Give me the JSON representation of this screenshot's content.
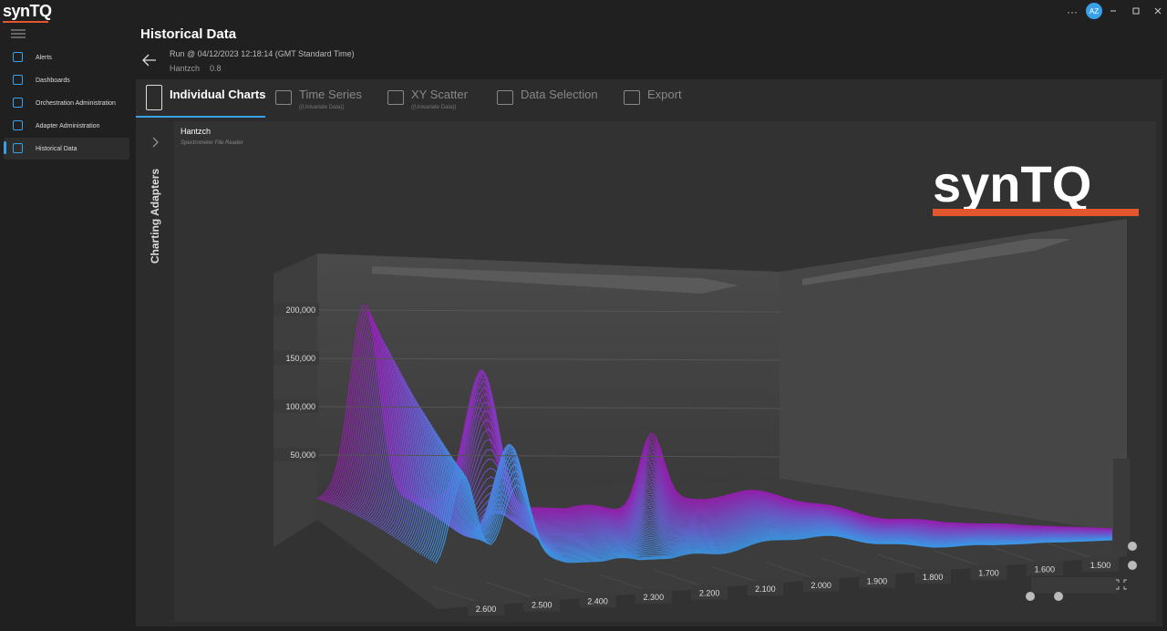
{
  "app": {
    "title": "synTQ"
  },
  "user": {
    "initials": "AZ"
  },
  "nav": [
    "Alerts",
    "Dashboards",
    "Orchestration Administration",
    "Adapter Administration",
    "Historical Data"
  ],
  "page": {
    "title": "Historical Data",
    "run": "Run @ 04/12/2023 12:18:14 (GMT Standard Time)",
    "adapter": "Hantzch",
    "version": "0.8"
  },
  "tabs": [
    {
      "label": "Individual Charts"
    },
    {
      "label": "Time Series",
      "sublabel": "((Univariate Data))"
    },
    {
      "label": "XY Scatter",
      "sublabel": "((Univariate Data))"
    },
    {
      "label": "Data Selection"
    },
    {
      "label": "Export"
    }
  ],
  "side_panel": "Charting Adapters",
  "chart_data": {
    "type": "surface3d",
    "title": "Hantzch",
    "subtitle": "Spectrometer File Reader",
    "logo": "synTQ",
    "yticks": [
      {
        "value": 50000,
        "label": "50,000"
      },
      {
        "value": 100000,
        "label": "100,000"
      },
      {
        "value": 150000,
        "label": "150,000"
      },
      {
        "value": 200000,
        "label": "200,000"
      }
    ],
    "xticks": [
      {
        "value": 2.6,
        "label": "2.600"
      },
      {
        "value": 2.5,
        "label": "2.500"
      },
      {
        "value": 2.4,
        "label": "2.400"
      },
      {
        "value": 2.3,
        "label": "2.300"
      },
      {
        "value": 2.2,
        "label": "2.200"
      },
      {
        "value": 2.1,
        "label": "2.100"
      },
      {
        "value": 2.0,
        "label": "2.000"
      },
      {
        "value": 1.9,
        "label": "1.900"
      },
      {
        "value": 1.8,
        "label": "1.800"
      },
      {
        "value": 1.7,
        "label": "1.700"
      },
      {
        "value": 1.6,
        "label": "1.600"
      },
      {
        "value": 1.5,
        "label": "1.500"
      }
    ]
  }
}
